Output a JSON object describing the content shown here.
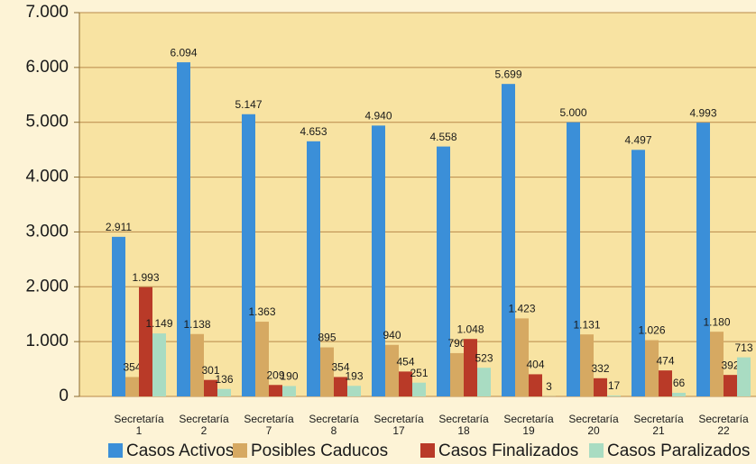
{
  "chart_data": {
    "type": "bar",
    "categories": [
      [
        "Secretaría",
        "1"
      ],
      [
        "Secretaría",
        "2"
      ],
      [
        "Secretaría",
        "7"
      ],
      [
        "Secretaría",
        "8"
      ],
      [
        "Secretaría",
        "17"
      ],
      [
        "Secretaría",
        "18"
      ],
      [
        "Secretaría",
        "19"
      ],
      [
        "Secretaría",
        "20"
      ],
      [
        "Secretaría",
        "21"
      ],
      [
        "Secretaría",
        "22"
      ]
    ],
    "series": [
      {
        "name": "Casos Activos",
        "color": "#3b8fd8",
        "values": [
          2911,
          6094,
          5147,
          4653,
          4940,
          4558,
          5699,
          5000,
          4497,
          4993
        ],
        "value_labels": [
          "2.911",
          "6.094",
          "5.147",
          "4.653",
          "4.940",
          "4.558",
          "5.699",
          "5.000",
          "4.497",
          "4.993"
        ]
      },
      {
        "name": "Posibles Caducos",
        "color": "#d6a962",
        "values": [
          354,
          1138,
          1363,
          895,
          940,
          790,
          1423,
          1131,
          1026,
          1180
        ],
        "value_labels": [
          "354",
          "1.138",
          "1.363",
          "895",
          "940",
          "790",
          "1.423",
          "1.131",
          "1.026",
          "1.180"
        ]
      },
      {
        "name": "Casos Finalizados",
        "color": "#b93a28",
        "values": [
          1993,
          301,
          209,
          354,
          454,
          1048,
          404,
          332,
          474,
          392
        ],
        "value_labels": [
          "1.993",
          "301",
          "209",
          "354",
          "454",
          "1.048",
          "404",
          "332",
          "474",
          "392"
        ]
      },
      {
        "name": "Casos Paralizados",
        "color": "#a9dcc2",
        "values": [
          1149,
          136,
          190,
          193,
          251,
          523,
          3,
          17,
          66,
          713
        ],
        "value_labels": [
          "1.149",
          "136",
          "190",
          "193",
          "251",
          "523",
          "3",
          "17",
          "66",
          "713"
        ]
      }
    ],
    "ylim": [
      0,
      7000
    ],
    "yticks": [
      0,
      {
        "value": 1000,
        "label": "1.000"
      },
      {
        "value": 2000,
        "label": "2.000"
      },
      {
        "value": 3000,
        "label": "3.000"
      },
      {
        "value": 4000,
        "label": "4.000"
      },
      {
        "value": 5000,
        "label": "5.000"
      },
      {
        "value": 6000,
        "label": "6.000"
      },
      {
        "value": 7000,
        "label": "7.000"
      }
    ],
    "grid": true
  }
}
